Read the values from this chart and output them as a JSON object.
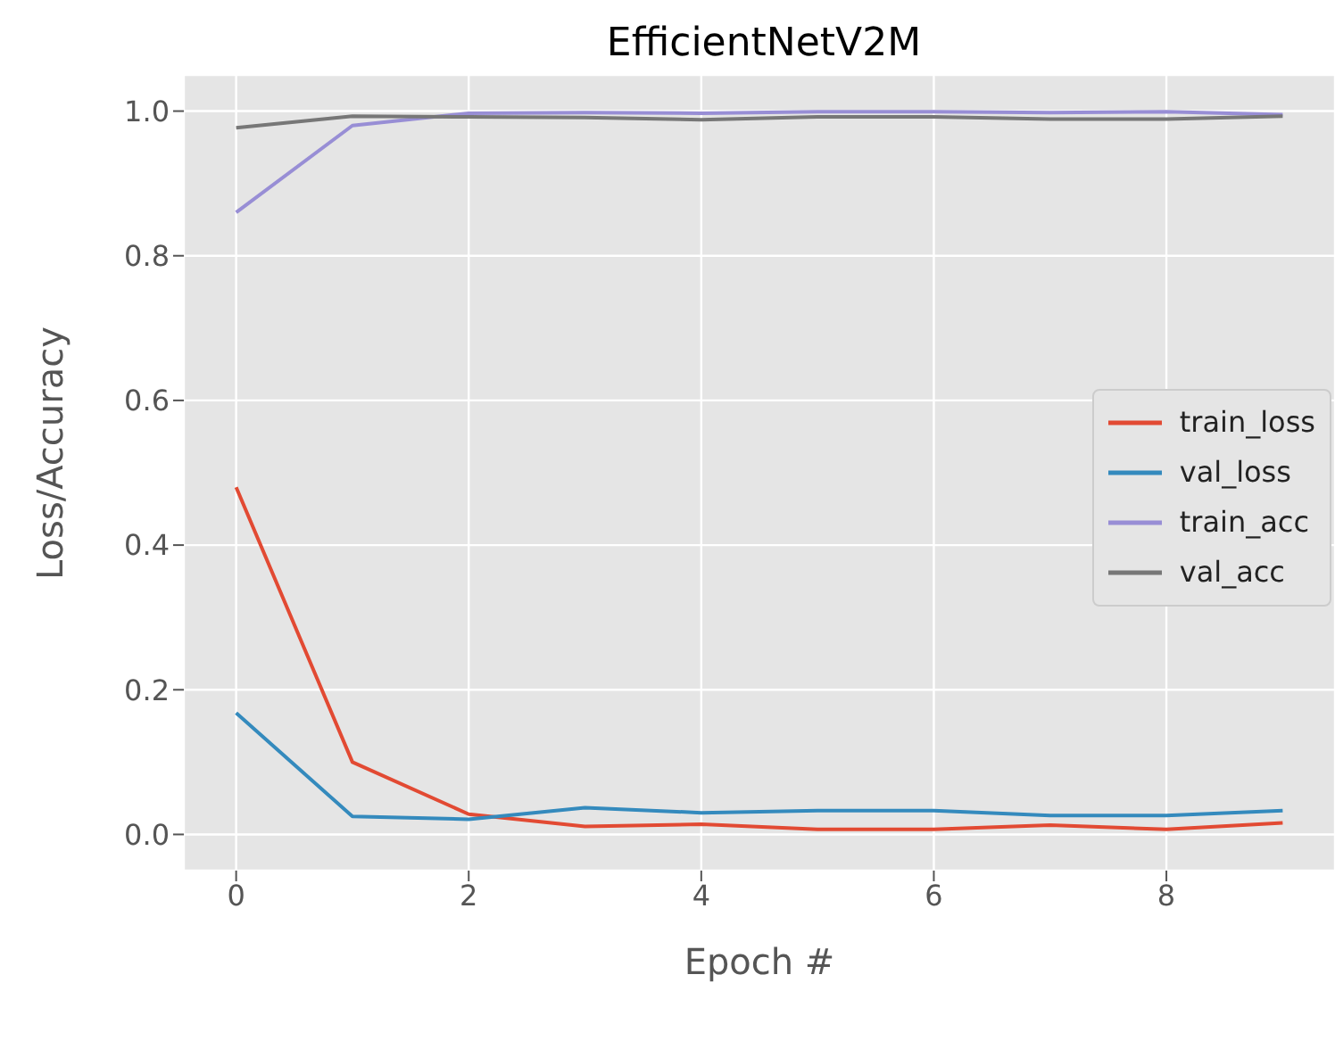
{
  "chart_data": {
    "type": "line",
    "title": "EfficientNetV2M",
    "xlabel": "Epoch #",
    "ylabel": "Loss/Accuracy",
    "x": [
      0,
      1,
      2,
      3,
      4,
      5,
      6,
      7,
      8,
      9
    ],
    "series": [
      {
        "name": "train_loss",
        "color": "#e24a33",
        "values": [
          0.48,
          0.1,
          0.028,
          0.011,
          0.014,
          0.007,
          0.007,
          0.013,
          0.007,
          0.016
        ]
      },
      {
        "name": "val_loss",
        "color": "#348abd",
        "values": [
          0.168,
          0.025,
          0.021,
          0.037,
          0.03,
          0.033,
          0.033,
          0.026,
          0.026,
          0.033
        ]
      },
      {
        "name": "train_acc",
        "color": "#988ed5",
        "values": [
          0.86,
          0.98,
          0.997,
          0.998,
          0.997,
          0.999,
          0.999,
          0.998,
          0.999,
          0.995
        ]
      },
      {
        "name": "val_acc",
        "color": "#777777",
        "values": [
          0.977,
          0.993,
          0.992,
          0.991,
          0.988,
          0.992,
          0.992,
          0.989,
          0.989,
          0.993
        ]
      }
    ],
    "xlim": [
      -0.45,
      9.45
    ],
    "xticks": [
      0,
      2,
      4,
      6,
      8
    ],
    "ylim": [
      -0.05,
      1.05
    ],
    "yticks": [
      {
        "value": 0,
        "label": "0.0"
      },
      0.2,
      0.4,
      0.6,
      0.8,
      {
        "value": 1,
        "label": "1.0"
      }
    ],
    "grid": true,
    "legend": "right",
    "marker": "none",
    "line_style": "solid"
  }
}
